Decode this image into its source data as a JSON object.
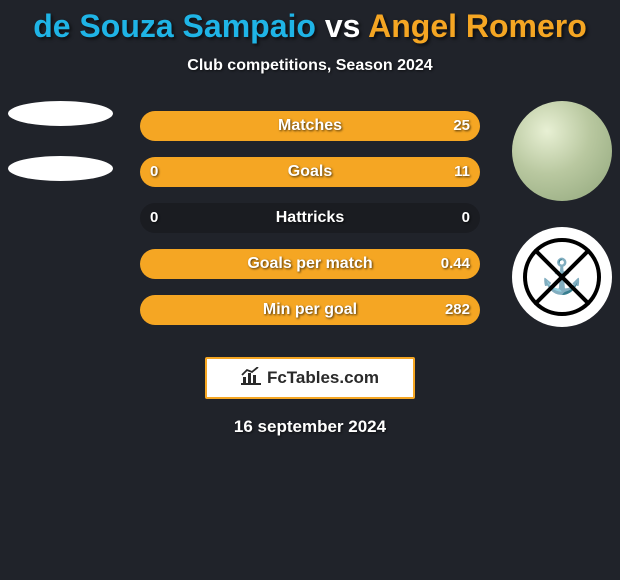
{
  "title": {
    "player1": "de Souza Sampaio",
    "vs": "vs",
    "player2": "Angel Romero",
    "p1_color": "#1fb4e6",
    "p2_color": "#f5a623",
    "vs_color": "#ffffff",
    "fontsize": 32
  },
  "subtitle": {
    "text": "Club competitions, Season 2024",
    "color": "#ffffff",
    "fontsize": 16
  },
  "colors": {
    "background": "#20232a",
    "bar_track": "#1a1c21",
    "p1_fill": "#1fb4e6",
    "p2_fill": "#f5a623",
    "text": "#ffffff"
  },
  "stats": [
    {
      "label": "Matches",
      "left_value": "",
      "right_value": "25",
      "left_pct": 0,
      "right_pct": 100
    },
    {
      "label": "Goals",
      "left_value": "0",
      "right_value": "11",
      "left_pct": 0,
      "right_pct": 100
    },
    {
      "label": "Hattricks",
      "left_value": "0",
      "right_value": "0",
      "left_pct": 0,
      "right_pct": 0
    },
    {
      "label": "Goals per match",
      "left_value": "",
      "right_value": "0.44",
      "left_pct": 0,
      "right_pct": 100
    },
    {
      "label": "Min per goal",
      "left_value": "",
      "right_value": "282",
      "left_pct": 0,
      "right_pct": 100
    }
  ],
  "bar_style": {
    "height": 30,
    "gap": 16,
    "radius": 15,
    "label_fontsize": 16,
    "value_fontsize": 15
  },
  "branding": {
    "icon": "chart-icon",
    "text": "FcTables.com",
    "border_color": "#f5a623",
    "bg_color": "#ffffff"
  },
  "date": {
    "text": "16 september 2024",
    "color": "#ffffff",
    "fontsize": 17
  },
  "right_avatars": {
    "player": "fabric-texture",
    "club": "corinthians-crest"
  }
}
